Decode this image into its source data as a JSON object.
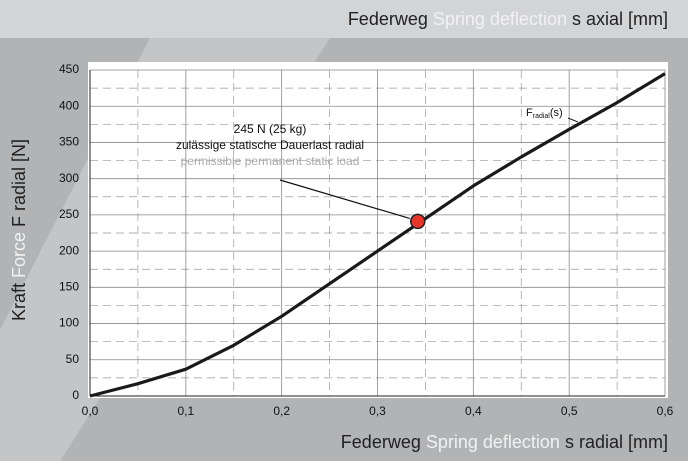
{
  "chart_data": {
    "type": "line",
    "top_label": [
      "Federweg",
      "Spring deflection",
      "s axial [mm]"
    ],
    "x_label": [
      "Federweg",
      "Spring deflection",
      "s radial [mm]"
    ],
    "y_label": [
      "Kraft",
      "Force",
      "F radial [N]"
    ],
    "x": [
      0,
      0.05,
      0.1,
      0.15,
      0.2,
      0.25,
      0.3,
      0.35,
      0.4,
      0.45,
      0.5,
      0.55,
      0.6
    ],
    "series": [
      {
        "name": [
          "F",
          "radial",
          "(s)"
        ],
        "color": "#1a1a1a",
        "values": [
          0,
          17,
          37,
          70,
          110,
          155,
          200,
          245,
          290,
          330,
          368,
          405,
          445
        ]
      }
    ],
    "xlim": [
      0,
      0.6
    ],
    "ylim": [
      0,
      450
    ],
    "xticks": [
      {
        "value": 0,
        "label": "0,0"
      },
      {
        "value": 0.1,
        "label": "0,1"
      },
      {
        "value": 0.2,
        "label": "0,2"
      },
      {
        "value": 0.3,
        "label": "0,3"
      },
      {
        "value": 0.4,
        "label": "0,4"
      },
      {
        "value": 0.5,
        "label": "0,5"
      },
      {
        "value": 0.6,
        "label": "0,6"
      }
    ],
    "yticks": [
      0,
      50,
      100,
      150,
      200,
      250,
      300,
      350,
      400,
      450
    ],
    "minor_xticks": [
      0.05,
      0.15,
      0.25,
      0.35,
      0.45,
      0.55
    ],
    "minor_yticks": [
      25,
      75,
      125,
      175,
      225,
      275,
      325,
      375,
      425
    ],
    "grid": true,
    "annotation": {
      "lines": [
        "245 N (25 kg)",
        "zulässige statische Dauerlast radial",
        "permissible permanent static load"
      ],
      "point": {
        "x": 0.342,
        "y": 241,
        "color": "#e8352b"
      }
    }
  }
}
